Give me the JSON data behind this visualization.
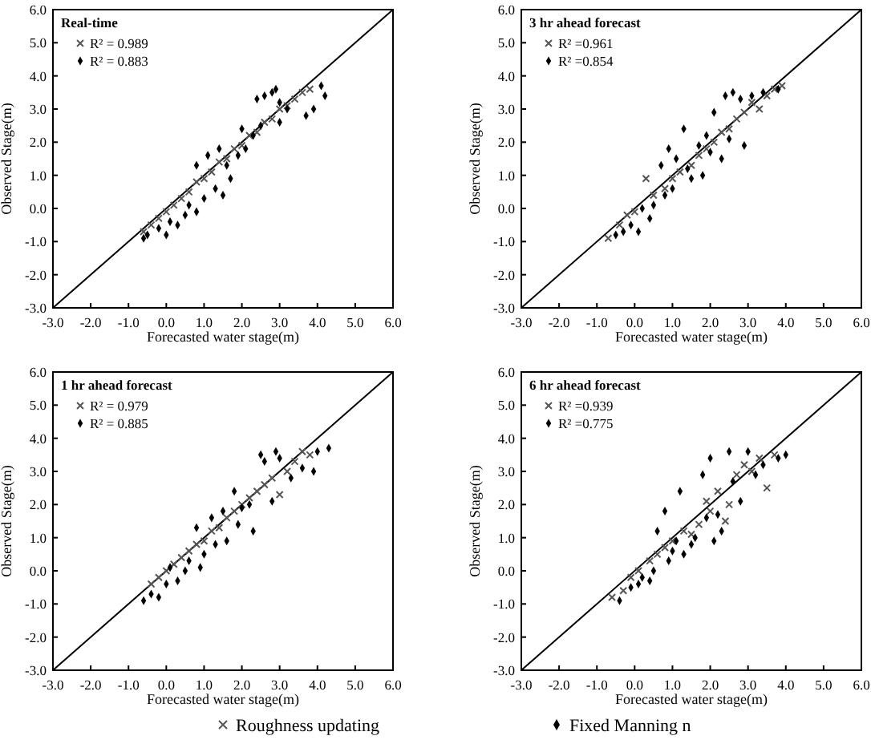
{
  "chart_data": [
    {
      "type": "scatter",
      "title": "Real-time",
      "xlabel": "Forecasted water stage(m)",
      "ylabel": "Observed Stage(m)",
      "legend": "top left",
      "xlim": [
        -3,
        6
      ],
      "ylim": [
        -3,
        6
      ],
      "xticks": [
        {
          "value": -3,
          "label": "-3.0"
        },
        {
          "value": -2,
          "label": "-2.0"
        },
        {
          "value": -1,
          "label": "-1.0"
        },
        {
          "value": 0,
          "label": "0.0"
        },
        {
          "value": 1,
          "label": "1.0"
        },
        {
          "value": 2,
          "label": "2.0"
        },
        {
          "value": 3,
          "label": "3.0"
        },
        {
          "value": 4,
          "label": "4.0"
        },
        {
          "value": 5,
          "label": "5.0"
        },
        {
          "value": 6,
          "label": "6.0"
        }
      ],
      "yticks": [
        {
          "value": -3,
          "label": "-3.0"
        },
        {
          "value": -2,
          "label": "-2.0"
        },
        {
          "value": -1,
          "label": "-1.0"
        },
        {
          "value": 0,
          "label": "0.0"
        },
        {
          "value": 1,
          "label": "1.0"
        },
        {
          "value": 2,
          "label": "2.0"
        },
        {
          "value": 3,
          "label": "3.0"
        },
        {
          "value": 4,
          "label": "4.0"
        },
        {
          "value": 5,
          "label": "5.0"
        },
        {
          "value": 6,
          "label": "6.0"
        }
      ],
      "grid": false,
      "series": [
        {
          "type": "line",
          "color": "#000000",
          "marker": "none",
          "x": [
            -3,
            6
          ],
          "values": [
            -3,
            6
          ]
        },
        {
          "name": "R² = 0.989",
          "color": "#555555",
          "marker": "cross",
          "x": [
            -0.6,
            -0.4,
            -0.2,
            0,
            0.2,
            0.4,
            0.6,
            0.8,
            1.0,
            1.2,
            1.4,
            1.6,
            1.8,
            2.0,
            2.2,
            2.4,
            2.6,
            2.8,
            3.0,
            3.2,
            3.4,
            3.6,
            3.8
          ],
          "values": [
            -0.7,
            -0.5,
            -0.3,
            -0.1,
            0.1,
            0.3,
            0.5,
            0.8,
            0.9,
            1.1,
            1.4,
            1.5,
            1.8,
            1.9,
            2.2,
            2.3,
            2.6,
            2.7,
            3.0,
            3.1,
            3.3,
            3.5,
            3.6
          ]
        },
        {
          "name": "R² = 0.883",
          "color": "#000000",
          "marker": "diamond",
          "x": [
            -0.6,
            -0.5,
            -0.2,
            0,
            0.1,
            0.3,
            0.5,
            0.6,
            0.8,
            0.8,
            1.0,
            1.1,
            1.3,
            1.4,
            1.5,
            1.6,
            1.7,
            1.9,
            2.0,
            2.1,
            2.3,
            2.4,
            2.5,
            2.6,
            2.8,
            2.9,
            3.0,
            3.0,
            3.2,
            3.7,
            3.9,
            4.1,
            4.2
          ],
          "values": [
            -0.9,
            -0.8,
            -0.6,
            -0.8,
            -0.4,
            -0.5,
            -0.2,
            0.1,
            1.3,
            -0.1,
            0.3,
            1.6,
            0.6,
            1.8,
            0.4,
            1.3,
            0.9,
            1.6,
            2.4,
            1.8,
            2.2,
            3.3,
            2.5,
            3.4,
            3.5,
            3.6,
            2.6,
            3.2,
            3.0,
            2.8,
            3.0,
            3.7,
            3.4
          ]
        }
      ]
    },
    {
      "type": "scatter",
      "title": "3 hr ahead forecast",
      "xlabel": "Forecasted water stage(m)",
      "ylabel": "Observed Stage(m)",
      "legend": "top left",
      "xlim": [
        -3,
        6
      ],
      "ylim": [
        -3,
        6
      ],
      "xticks": [
        {
          "value": -3,
          "label": "-3.0"
        },
        {
          "value": -2,
          "label": "-2.0"
        },
        {
          "value": -1,
          "label": "-1.0"
        },
        {
          "value": 0,
          "label": "0.0"
        },
        {
          "value": 1,
          "label": "1.0"
        },
        {
          "value": 2,
          "label": "2.0"
        },
        {
          "value": 3,
          "label": "3.0"
        },
        {
          "value": 4,
          "label": "4.0"
        },
        {
          "value": 5,
          "label": "5.0"
        },
        {
          "value": 6,
          "label": "6.0"
        }
      ],
      "yticks": [
        {
          "value": -3,
          "label": "-3.0"
        },
        {
          "value": -2,
          "label": "-2.0"
        },
        {
          "value": -1,
          "label": "-1.0"
        },
        {
          "value": 0,
          "label": "0.0"
        },
        {
          "value": 1,
          "label": "1.0"
        },
        {
          "value": 2,
          "label": "2.0"
        },
        {
          "value": 3,
          "label": "3.0"
        },
        {
          "value": 4,
          "label": "4.0"
        },
        {
          "value": 5,
          "label": "5.0"
        },
        {
          "value": 6,
          "label": "6.0"
        }
      ],
      "grid": false,
      "series": [
        {
          "type": "line",
          "color": "#000000",
          "marker": "none",
          "x": [
            -3,
            6
          ],
          "values": [
            -3,
            6
          ]
        },
        {
          "name": "R² =0.961",
          "color": "#555555",
          "marker": "cross",
          "x": [
            -0.7,
            -0.4,
            -0.2,
            0,
            0.3,
            0.5,
            0.8,
            1.0,
            1.2,
            1.5,
            1.7,
            1.9,
            2.1,
            2.3,
            2.5,
            2.7,
            2.9,
            3.1,
            3.3,
            3.5,
            3.7,
            3.9
          ],
          "values": [
            -0.9,
            -0.5,
            -0.2,
            -0.1,
            0.9,
            0.4,
            0.6,
            0.9,
            1.1,
            1.3,
            1.6,
            1.8,
            2.0,
            2.3,
            2.4,
            2.7,
            2.9,
            3.2,
            3.0,
            3.4,
            3.6,
            3.7
          ]
        },
        {
          "name": "R² =0.854",
          "color": "#000000",
          "marker": "diamond",
          "x": [
            -0.5,
            -0.3,
            -0.1,
            0.1,
            0.2,
            0.4,
            0.5,
            0.7,
            0.8,
            0.9,
            1.0,
            1.1,
            1.3,
            1.4,
            1.5,
            1.7,
            1.8,
            1.9,
            2.0,
            2.1,
            2.3,
            2.4,
            2.5,
            2.6,
            2.8,
            2.9,
            3.1,
            3.4,
            3.8
          ],
          "values": [
            -0.8,
            -0.7,
            -0.5,
            -0.7,
            0.0,
            -0.3,
            0.1,
            1.3,
            0.4,
            1.8,
            0.6,
            1.5,
            2.4,
            1.2,
            0.9,
            1.9,
            1.0,
            2.2,
            1.7,
            2.9,
            1.5,
            3.4,
            2.1,
            3.5,
            3.3,
            1.9,
            3.4,
            3.5,
            3.6
          ]
        }
      ]
    },
    {
      "type": "scatter",
      "title": "1 hr ahead forecast",
      "xlabel": "Forecasted water stage(m)",
      "ylabel": "Observed Stage(m)",
      "legend": "top left",
      "xlim": [
        -3,
        6
      ],
      "ylim": [
        -3,
        6
      ],
      "xticks": [
        {
          "value": -3,
          "label": "-3.0"
        },
        {
          "value": -2,
          "label": "-2.0"
        },
        {
          "value": -1,
          "label": "-1.0"
        },
        {
          "value": 0,
          "label": "0.0"
        },
        {
          "value": 1,
          "label": "1.0"
        },
        {
          "value": 2,
          "label": "2.0"
        },
        {
          "value": 3,
          "label": "3.0"
        },
        {
          "value": 4,
          "label": "4.0"
        },
        {
          "value": 5,
          "label": "5.0"
        },
        {
          "value": 6,
          "label": "6.0"
        }
      ],
      "yticks": [
        {
          "value": -3,
          "label": "-3.0"
        },
        {
          "value": -2,
          "label": "-2.0"
        },
        {
          "value": -1,
          "label": "-1.0"
        },
        {
          "value": 0,
          "label": "0.0"
        },
        {
          "value": 1,
          "label": "1.0"
        },
        {
          "value": 2,
          "label": "2.0"
        },
        {
          "value": 3,
          "label": "3.0"
        },
        {
          "value": 4,
          "label": "4.0"
        },
        {
          "value": 5,
          "label": "5.0"
        },
        {
          "value": 6,
          "label": "6.0"
        }
      ],
      "grid": false,
      "series": [
        {
          "type": "line",
          "color": "#000000",
          "marker": "none",
          "x": [
            -3,
            6
          ],
          "values": [
            -3,
            6
          ]
        },
        {
          "name": "R² = 0.979",
          "color": "#555555",
          "marker": "cross",
          "x": [
            -0.4,
            -0.2,
            0,
            0.2,
            0.4,
            0.6,
            0.8,
            1.0,
            1.2,
            1.4,
            1.6,
            1.8,
            2.0,
            2.2,
            2.4,
            2.6,
            2.8,
            3.0,
            3.2,
            3.4,
            3.6,
            3.8
          ],
          "values": [
            -0.4,
            -0.2,
            0.0,
            0.2,
            0.4,
            0.6,
            0.8,
            0.9,
            1.2,
            1.3,
            1.6,
            1.8,
            2.0,
            2.2,
            2.4,
            2.6,
            2.8,
            2.3,
            3.0,
            3.3,
            3.6,
            3.5
          ]
        },
        {
          "name": "R² = 0.885",
          "color": "#000000",
          "marker": "diamond",
          "x": [
            -0.6,
            -0.4,
            -0.2,
            0,
            0.1,
            0.3,
            0.5,
            0.6,
            0.8,
            0.9,
            1.0,
            1.2,
            1.3,
            1.5,
            1.6,
            1.8,
            1.9,
            2.0,
            2.2,
            2.3,
            2.5,
            2.6,
            2.8,
            2.9,
            3.0,
            3.3,
            3.6,
            3.9,
            4.0,
            4.3
          ],
          "values": [
            -0.9,
            -0.7,
            -0.8,
            -0.4,
            0.1,
            -0.3,
            0.0,
            0.3,
            1.3,
            0.1,
            0.5,
            1.6,
            0.8,
            1.8,
            0.9,
            2.4,
            1.4,
            1.9,
            2.0,
            1.2,
            3.5,
            3.3,
            2.1,
            3.6,
            3.4,
            2.8,
            3.1,
            3.0,
            3.6,
            3.7
          ]
        }
      ],
      "annotations": [
        "Roughness updating"
      ]
    },
    {
      "type": "scatter",
      "title": "6 hr ahead forecast",
      "xlabel": "Forecasted water stage(m)",
      "ylabel": "Observed Stage(m)",
      "legend": "top left",
      "xlim": [
        -3,
        6
      ],
      "ylim": [
        -3,
        6
      ],
      "xticks": [
        {
          "value": -3,
          "label": "-3.0"
        },
        {
          "value": -2,
          "label": "-2.0"
        },
        {
          "value": -1,
          "label": "-1.0"
        },
        {
          "value": 0,
          "label": "0.0"
        },
        {
          "value": 1,
          "label": "1.0"
        },
        {
          "value": 2,
          "label": "2.0"
        },
        {
          "value": 3,
          "label": "3.0"
        },
        {
          "value": 4,
          "label": "4.0"
        },
        {
          "value": 5,
          "label": "5.0"
        },
        {
          "value": 6,
          "label": "6.0"
        }
      ],
      "yticks": [
        {
          "value": -3,
          "label": "-3.0"
        },
        {
          "value": -2,
          "label": "-2.0"
        },
        {
          "value": -1,
          "label": "-1.0"
        },
        {
          "value": 0,
          "label": "0.0"
        },
        {
          "value": 1,
          "label": "1.0"
        },
        {
          "value": 2,
          "label": "2.0"
        },
        {
          "value": 3,
          "label": "3.0"
        },
        {
          "value": 4,
          "label": "4.0"
        },
        {
          "value": 5,
          "label": "5.0"
        },
        {
          "value": 6,
          "label": "6.0"
        }
      ],
      "grid": false,
      "series": [
        {
          "type": "line",
          "color": "#000000",
          "marker": "none",
          "x": [
            -3,
            6
          ],
          "values": [
            -3,
            6
          ]
        },
        {
          "name": "R² =0.939",
          "color": "#555555",
          "marker": "cross",
          "x": [
            -0.6,
            -0.3,
            -0.1,
            0.1,
            0.4,
            0.6,
            0.8,
            1.0,
            1.3,
            1.5,
            1.7,
            1.9,
            2.0,
            2.2,
            2.4,
            2.5,
            2.7,
            2.9,
            3.1,
            3.3,
            3.5,
            3.7
          ],
          "values": [
            -0.8,
            -0.6,
            -0.2,
            0.0,
            0.3,
            0.5,
            0.7,
            0.9,
            1.2,
            1.1,
            1.4,
            2.1,
            1.8,
            2.4,
            1.5,
            2.0,
            2.9,
            3.2,
            3.0,
            3.4,
            2.5,
            3.5
          ]
        },
        {
          "name": "R² =0.775",
          "color": "#000000",
          "marker": "diamond",
          "x": [
            -0.4,
            -0.1,
            0.1,
            0.2,
            0.4,
            0.5,
            0.6,
            0.8,
            0.9,
            1.0,
            1.1,
            1.2,
            1.3,
            1.5,
            1.6,
            1.8,
            1.9,
            2.0,
            2.1,
            2.2,
            2.3,
            2.5,
            2.6,
            2.8,
            3.0,
            3.2,
            3.4,
            3.8,
            4.0
          ],
          "values": [
            -0.9,
            -0.5,
            -0.4,
            -0.2,
            -0.3,
            0.0,
            1.2,
            1.8,
            0.3,
            0.6,
            0.9,
            2.4,
            0.5,
            0.8,
            1.0,
            2.9,
            1.6,
            3.4,
            0.9,
            1.7,
            1.2,
            3.6,
            2.7,
            2.1,
            3.6,
            2.9,
            3.2,
            3.4,
            3.5
          ]
        }
      ],
      "annotations": [
        "Fixed Manning n"
      ]
    }
  ]
}
